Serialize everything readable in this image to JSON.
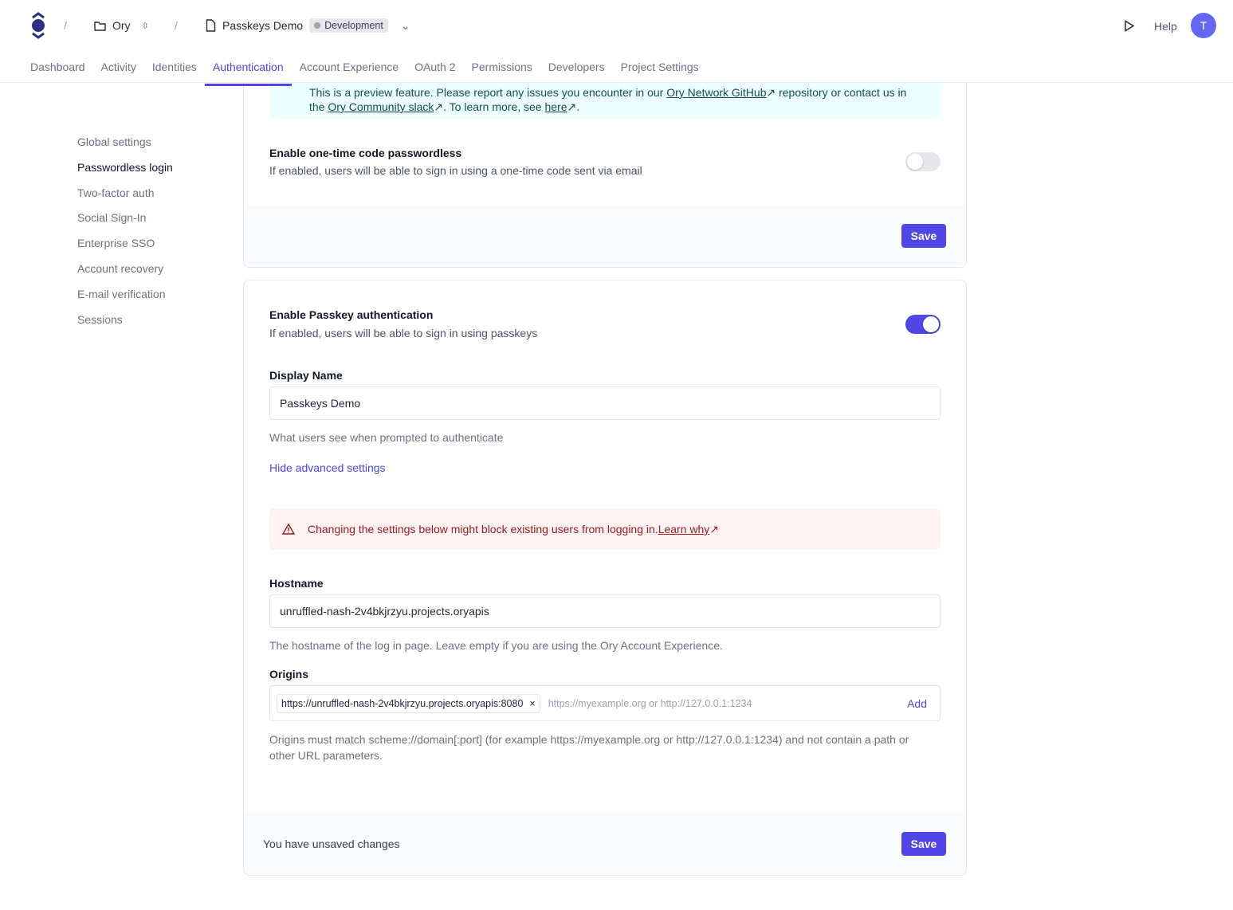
{
  "header": {
    "org": "Ory",
    "project": "Passkeys Demo",
    "environment": "Development",
    "help": "Help",
    "avatar": "T"
  },
  "tabs": [
    "Dashboard",
    "Activity",
    "Identities",
    "Authentication",
    "Account Experience",
    "OAuth 2",
    "Permissions",
    "Developers",
    "Project Settings"
  ],
  "sidebar": [
    "Global settings",
    "Passwordless login",
    "Two-factor auth",
    "Social Sign-In",
    "Enterprise SSO",
    "Account recovery",
    "E-mail verification",
    "Sessions"
  ],
  "banner": {
    "line1_pre": "This is a preview feature. Please report any issues you encounter in our ",
    "github": "Ory Network GitHub",
    "line1_post": " repository or contact us in",
    "line2_pre": "the ",
    "slack": "Ory Community slack",
    "line2_mid": ". To learn more, see ",
    "here": "here",
    "line2_post": "."
  },
  "otp": {
    "title": "Enable one-time code passwordless",
    "desc": "If enabled, users will be able to sign in using a one-time code sent via email",
    "enabled": false,
    "save": "Save"
  },
  "passkey": {
    "title": "Enable Passkey authentication",
    "desc": "If enabled, users will be able to sign in using passkeys",
    "enabled": true,
    "display_name_label": "Display Name",
    "display_name_value": "Passkeys Demo",
    "display_name_help": "What users see when prompted to authenticate",
    "advanced_link": "Hide advanced settings",
    "warning": "Changing the settings below might block existing users from logging in. ",
    "warning_link": "Learn why",
    "hostname_label": "Hostname",
    "hostname_value": "unruffled-nash-2v4bkjrzyu.projects.oryapis",
    "hostname_help": "The hostname of the log in page. Leave empty if you are using the Ory Account Experience.",
    "origins_label": "Origins",
    "origins": [
      "https://unruffled-nash-2v4bkjrzyu.projects.oryapis:8080"
    ],
    "origins_placeholder": "https://myexample.org or http://127.0.0.1:1234",
    "add": "Add",
    "origins_help": "Origins must match scheme://domain[:port] (for example https://myexample.org or http://127.0.0.1:1234) and not contain a path or other URL parameters.",
    "unsaved": "You have unsaved changes",
    "save": "Save"
  },
  "colors": {
    "accent": "#4f46e5",
    "warning_bg": "#fef2f2",
    "warning_text": "#991b1b",
    "banner_bg": "#ecfeff"
  }
}
